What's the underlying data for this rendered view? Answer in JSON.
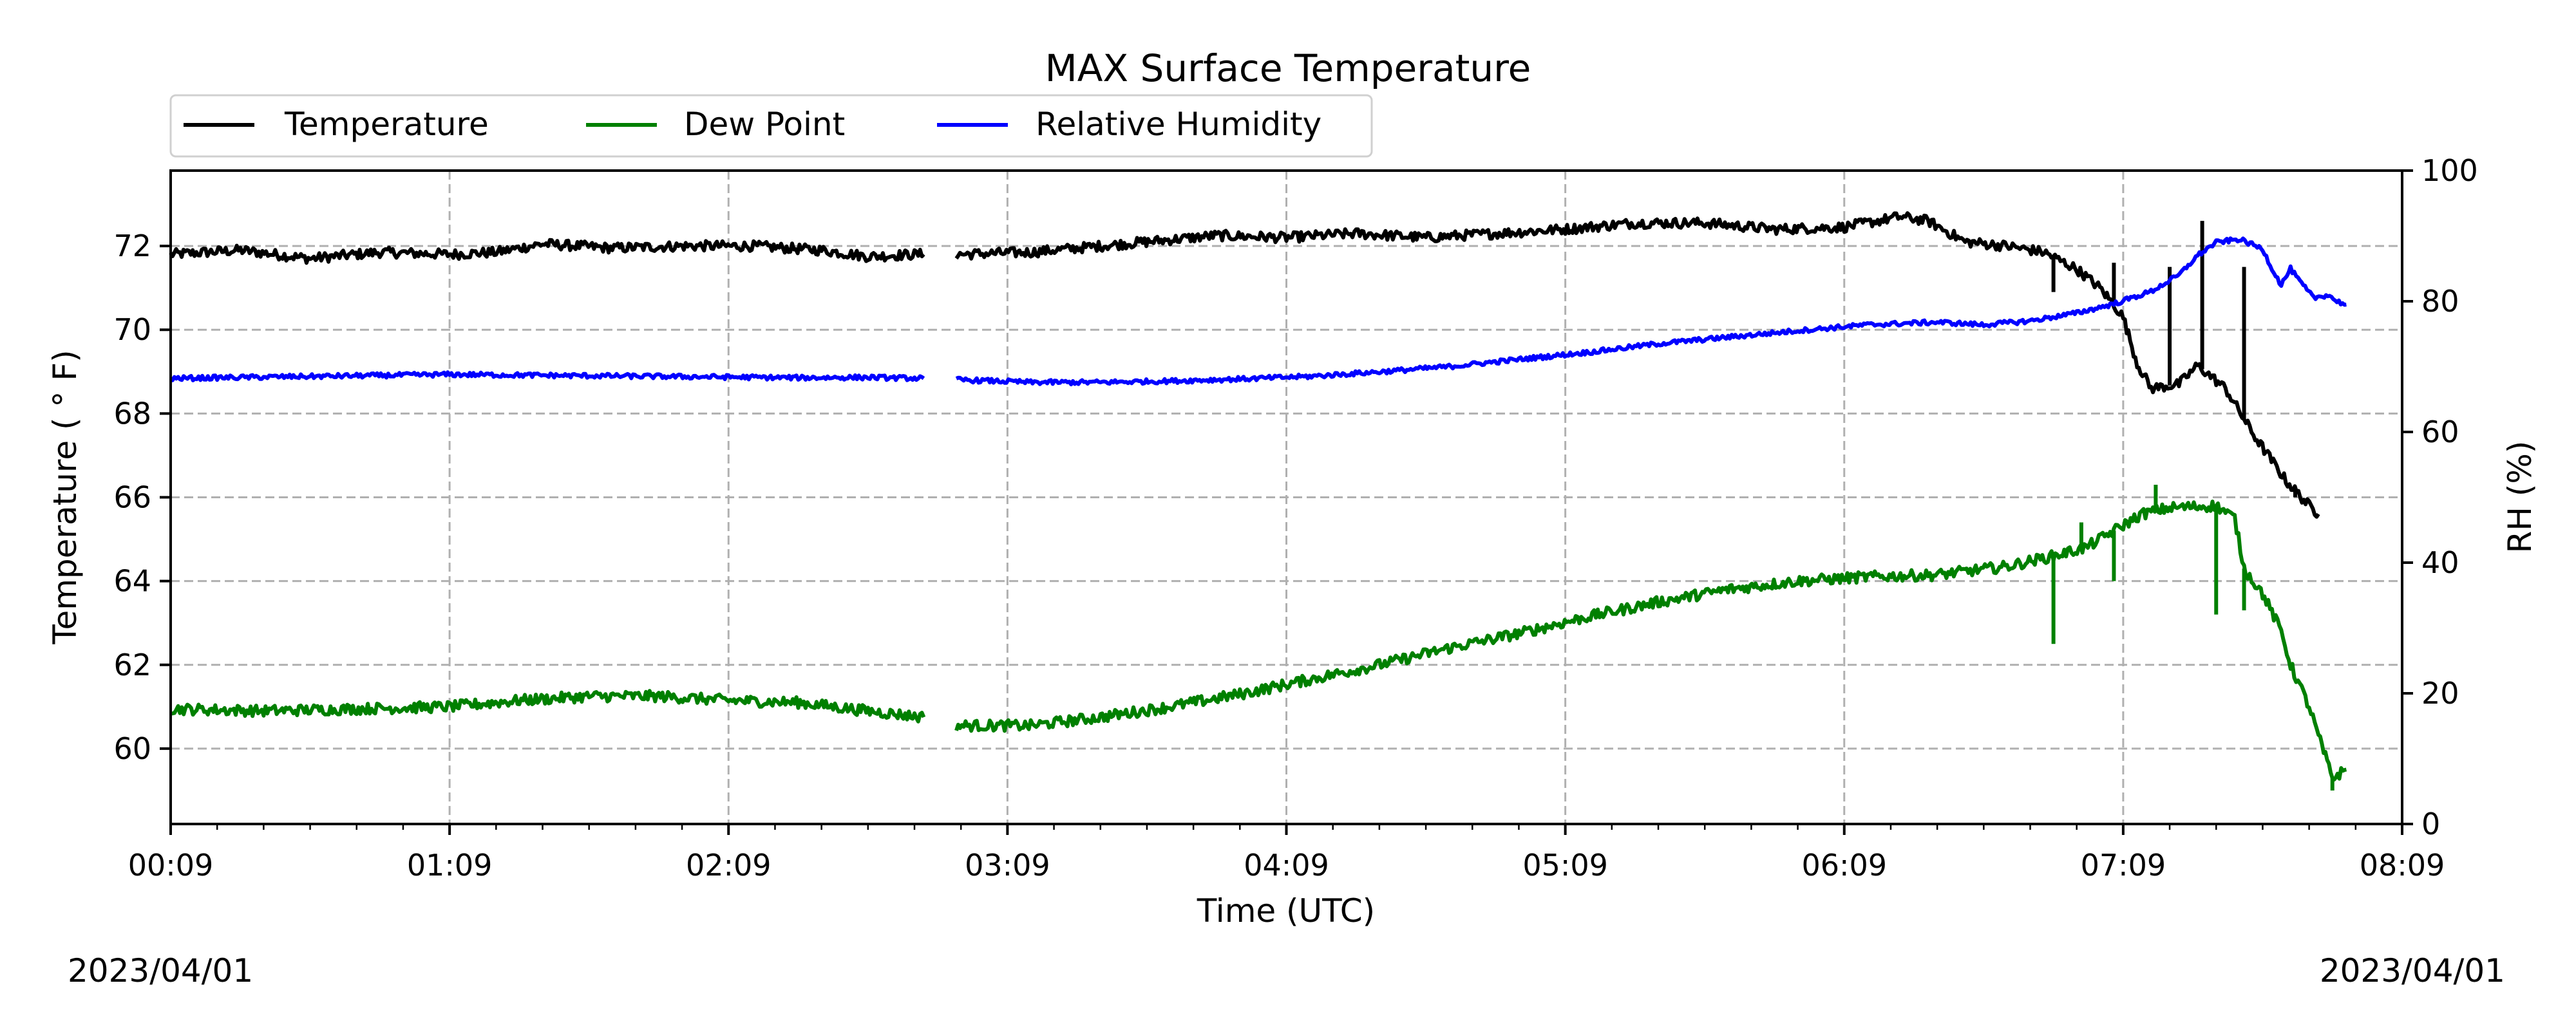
{
  "chart_data": {
    "type": "line",
    "title": "MAX Surface Temperature",
    "xlabel": "Time (UTC)",
    "ylabel": "Temperature ($^\\circ$F)",
    "ylabel_display": "Temperature ( ° F)",
    "y2label": "RH (%)",
    "x_ticks": [
      "00:09",
      "01:09",
      "02:09",
      "03:09",
      "04:09",
      "05:09",
      "06:09",
      "07:09",
      "08:09"
    ],
    "xlim": [
      0,
      480
    ],
    "ylim": [
      58.2,
      73.8
    ],
    "y2lim": [
      0,
      100
    ],
    "y_ticks": [
      60,
      62,
      64,
      66,
      68,
      70,
      72
    ],
    "y2_ticks": [
      0,
      20,
      40,
      60,
      80,
      100
    ],
    "grid": true,
    "legend_placement": "top-left",
    "date_left": "2023/04/01",
    "date_right": "2023/04/01",
    "series": [
      {
        "name": "Temperature",
        "axis": "left",
        "color": "#000000",
        "noise": 0.12,
        "points": [
          [
            0,
            71.8
          ],
          [
            15,
            71.9
          ],
          [
            30,
            71.7
          ],
          [
            45,
            71.85
          ],
          [
            60,
            71.8
          ],
          [
            70,
            71.85
          ],
          [
            80,
            72.05
          ],
          [
            95,
            71.95
          ],
          [
            110,
            72.0
          ],
          [
            125,
            72.0
          ],
          [
            140,
            71.9
          ],
          [
            150,
            71.75
          ],
          [
            160,
            71.8
          ],
          [
            162,
            71.8
          ],
          null,
          [
            169,
            71.8
          ],
          [
            185,
            71.85
          ],
          [
            200,
            72.0
          ],
          [
            215,
            72.15
          ],
          [
            225,
            72.25
          ],
          [
            240,
            72.2
          ],
          [
            255,
            72.3
          ],
          [
            270,
            72.2
          ],
          [
            285,
            72.3
          ],
          [
            300,
            72.4
          ],
          [
            315,
            72.55
          ],
          [
            330,
            72.55
          ],
          [
            345,
            72.4
          ],
          [
            360,
            72.45
          ],
          [
            372,
            72.7
          ],
          [
            378,
            72.6
          ],
          [
            386,
            72.1
          ],
          [
            395,
            72.0
          ],
          [
            403,
            71.85
          ],
          [
            410,
            71.45
          ],
          [
            415,
            71.0
          ],
          [
            418,
            70.6
          ],
          [
            420,
            70.3
          ],
          [
            423,
            69.2
          ],
          [
            426,
            68.6
          ],
          [
            432,
            68.7
          ],
          [
            436,
            69.15
          ],
          [
            442,
            68.6
          ],
          [
            448,
            67.5
          ],
          [
            455,
            66.4
          ],
          [
            460,
            65.8
          ],
          [
            462,
            65.6
          ]
        ],
        "spikes": [
          [
            405,
            70.9
          ],
          [
            418,
            71.6
          ],
          [
            430,
            71.5
          ],
          [
            437,
            72.6
          ],
          [
            446,
            71.5
          ],
          [
            457,
            66.0
          ],
          [
            467,
            65.7
          ]
        ]
      },
      {
        "name": "Dew Point",
        "axis": "left",
        "color": "#008000",
        "noise": 0.13,
        "points": [
          [
            0,
            60.95
          ],
          [
            20,
            60.9
          ],
          [
            40,
            60.95
          ],
          [
            60,
            61.0
          ],
          [
            75,
            61.15
          ],
          [
            90,
            61.25
          ],
          [
            105,
            61.25
          ],
          [
            120,
            61.15
          ],
          [
            135,
            61.1
          ],
          [
            150,
            60.9
          ],
          [
            162,
            60.75
          ],
          null,
          [
            169,
            60.55
          ],
          [
            185,
            60.55
          ],
          [
            200,
            60.75
          ],
          [
            215,
            61.0
          ],
          [
            230,
            61.3
          ],
          [
            245,
            61.65
          ],
          [
            260,
            62.0
          ],
          [
            275,
            62.4
          ],
          [
            290,
            62.75
          ],
          [
            305,
            63.15
          ],
          [
            320,
            63.5
          ],
          [
            335,
            63.8
          ],
          [
            350,
            64.0
          ],
          [
            365,
            64.1
          ],
          [
            380,
            64.15
          ],
          [
            395,
            64.35
          ],
          [
            405,
            64.6
          ],
          [
            412,
            64.8
          ],
          [
            418,
            65.2
          ],
          [
            424,
            65.6
          ],
          [
            430,
            65.75
          ],
          [
            440,
            65.8
          ],
          [
            444,
            65.5
          ],
          [
            446,
            64.3
          ],
          [
            450,
            63.7
          ],
          [
            454,
            62.8
          ],
          [
            456,
            62.0
          ],
          [
            460,
            61.0
          ],
          [
            462,
            60.3
          ],
          [
            465,
            59.3
          ],
          [
            468,
            59.5
          ]
        ],
        "spikes": [
          [
            405,
            62.5
          ],
          [
            411,
            65.4
          ],
          [
            418,
            64.0
          ],
          [
            427,
            66.3
          ],
          [
            440,
            63.2
          ],
          [
            446,
            63.3
          ],
          [
            465,
            59.0
          ]
        ]
      },
      {
        "name": "Relative Humidity",
        "axis": "right",
        "color": "#0000ff",
        "noise": 0.35,
        "points": [
          [
            0,
            68.2
          ],
          [
            20,
            68.4
          ],
          [
            40,
            68.6
          ],
          [
            60,
            68.8
          ],
          [
            75,
            68.7
          ],
          [
            90,
            68.6
          ],
          [
            105,
            68.5
          ],
          [
            120,
            68.4
          ],
          [
            135,
            68.3
          ],
          [
            150,
            68.35
          ],
          [
            162,
            68.2
          ],
          null,
          [
            169,
            68.0
          ],
          [
            185,
            67.6
          ],
          [
            200,
            67.6
          ],
          [
            215,
            67.8
          ],
          [
            230,
            68.1
          ],
          [
            245,
            68.5
          ],
          [
            260,
            69.2
          ],
          [
            275,
            70.0
          ],
          [
            290,
            71.1
          ],
          [
            305,
            72.2
          ],
          [
            320,
            73.5
          ],
          [
            335,
            74.5
          ],
          [
            350,
            75.5
          ],
          [
            365,
            76.4
          ],
          [
            380,
            76.8
          ],
          [
            390,
            76.4
          ],
          [
            400,
            77.0
          ],
          [
            410,
            78.2
          ],
          [
            418,
            79.6
          ],
          [
            426,
            81.5
          ],
          [
            432,
            84.0
          ],
          [
            436,
            87.0
          ],
          [
            440,
            89.0
          ],
          [
            445,
            89.5
          ],
          [
            450,
            88.0
          ],
          [
            452,
            85.0
          ],
          [
            454,
            82.5
          ],
          [
            456,
            85.0
          ],
          [
            458,
            83.0
          ],
          [
            461,
            80.5
          ],
          [
            464,
            81.0
          ],
          [
            466,
            80.0
          ],
          [
            468,
            79.5
          ]
        ],
        "spikes": []
      }
    ]
  }
}
